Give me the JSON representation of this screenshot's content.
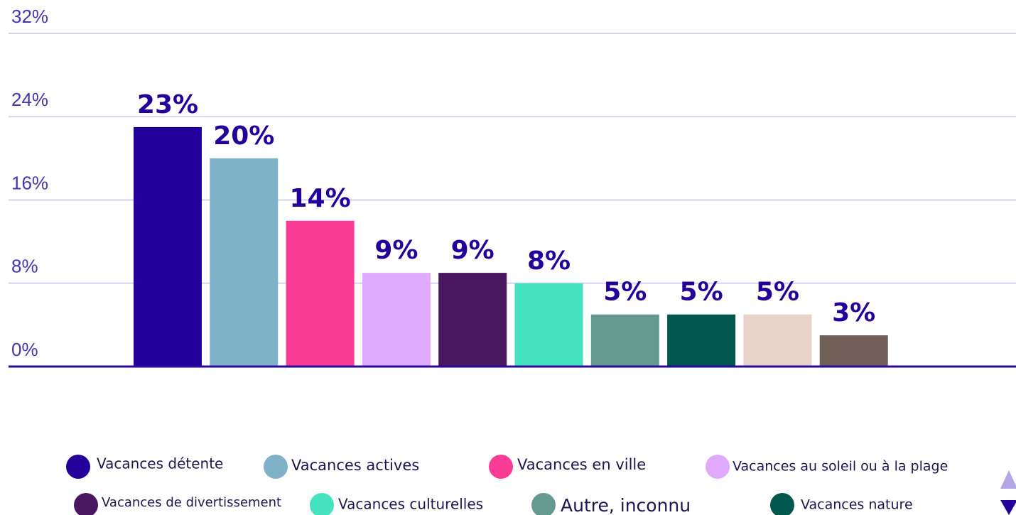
{
  "chart_data": {
    "type": "bar",
    "categories": [
      "Vacances détente",
      "Vacances actives",
      "Vacances en ville",
      "Vacances au soleil ou à la plage",
      "Vacances de divertissement",
      "Vacances culturelles",
      "Autre, inconnu",
      "Vacances nature",
      null,
      null
    ],
    "values": [
      23,
      20,
      14,
      9,
      9,
      8,
      5,
      5,
      5,
      3
    ],
    "value_labels": [
      "23%",
      "20%",
      "14%",
      "9%",
      "9%",
      "8%",
      "5%",
      "5%",
      "5%",
      "3%"
    ],
    "colors": [
      "#24009a",
      "#7fb1c8",
      "#fb3c96",
      "#e0aaff",
      "#4a165e",
      "#45e3bd",
      "#659a8e",
      "#00574b",
      "#e8d3cb",
      "#6f5f57"
    ],
    "ylim": [
      0,
      32
    ],
    "yticks": [
      {
        "value": 0,
        "label": "0%"
      },
      {
        "value": 8,
        "label": "8%"
      },
      {
        "value": 16,
        "label": "16%"
      },
      {
        "value": 24,
        "label": "24%"
      },
      {
        "value": 32,
        "label": "32%"
      }
    ],
    "grid": true
  }
}
